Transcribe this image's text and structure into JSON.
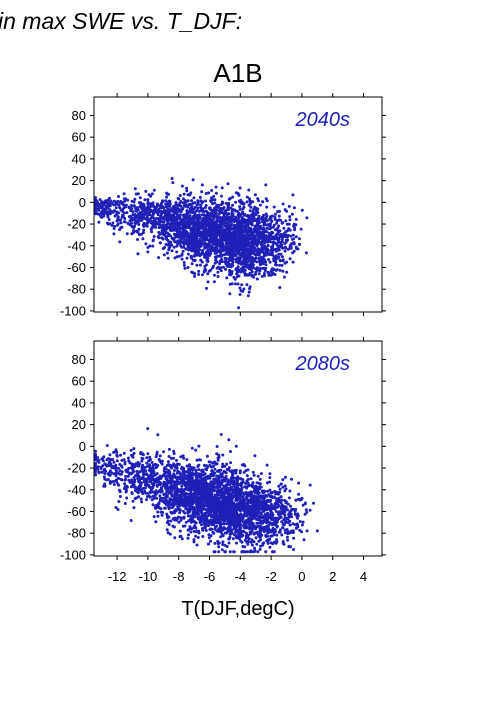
{
  "header": {
    "text": "in max SWE vs. T_DJF:"
  },
  "accent_color": "#2020b8",
  "chart_data": {
    "type": "scatter",
    "title": "A1B",
    "xlabel": "T(DJF,degC)",
    "ylabel": "",
    "xlim": [
      -13.5,
      5.2
    ],
    "ylim": [
      -101,
      97
    ],
    "x_ticks": [
      -12,
      -10,
      -8,
      -6,
      -4,
      -2,
      0,
      2,
      4
    ],
    "x_tick_labels": [
      "-12",
      "-10",
      "-8",
      "-6",
      "-4",
      "-2",
      "0",
      "2",
      "4"
    ],
    "y_ticks": [
      -100,
      -80,
      -60,
      -40,
      -20,
      0,
      20,
      40,
      60,
      80
    ],
    "y_tick_labels": [
      "-100",
      "-80",
      "-60",
      "-40",
      "-20",
      "0",
      "20",
      "40",
      "60",
      "80"
    ],
    "grid": false,
    "marker_color": "#2020b8",
    "panels": [
      {
        "label": "2040s",
        "clusters": [
          {
            "x": -12.8,
            "y": -5,
            "sx": 0.5,
            "sy": 4,
            "n": 110
          },
          {
            "x": -10.5,
            "y": -12,
            "sx": 0.9,
            "sy": 9,
            "n": 260
          },
          {
            "x": -8.0,
            "y": -20,
            "sx": 1.0,
            "sy": 13,
            "n": 520
          },
          {
            "x": -6.0,
            "y": -28,
            "sx": 1.0,
            "sy": 16,
            "n": 820
          },
          {
            "x": -4.2,
            "y": -35,
            "sx": 0.9,
            "sy": 18,
            "n": 760
          },
          {
            "x": -2.6,
            "y": -40,
            "sx": 0.8,
            "sy": 16,
            "n": 360
          },
          {
            "x": -1.2,
            "y": -30,
            "sx": 0.6,
            "sy": 14,
            "n": 110
          }
        ]
      },
      {
        "label": "2080s",
        "clusters": [
          {
            "x": -12.6,
            "y": -18,
            "sx": 0.6,
            "sy": 8,
            "n": 90
          },
          {
            "x": -10.5,
            "y": -28,
            "sx": 0.9,
            "sy": 12,
            "n": 270
          },
          {
            "x": -8.0,
            "y": -40,
            "sx": 1.0,
            "sy": 15,
            "n": 560
          },
          {
            "x": -6.0,
            "y": -50,
            "sx": 1.0,
            "sy": 17,
            "n": 840
          },
          {
            "x": -4.2,
            "y": -58,
            "sx": 0.9,
            "sy": 17,
            "n": 780
          },
          {
            "x": -2.4,
            "y": -62,
            "sx": 0.8,
            "sy": 15,
            "n": 380
          },
          {
            "x": -0.8,
            "y": -65,
            "sx": 0.6,
            "sy": 12,
            "n": 110
          }
        ]
      }
    ]
  }
}
